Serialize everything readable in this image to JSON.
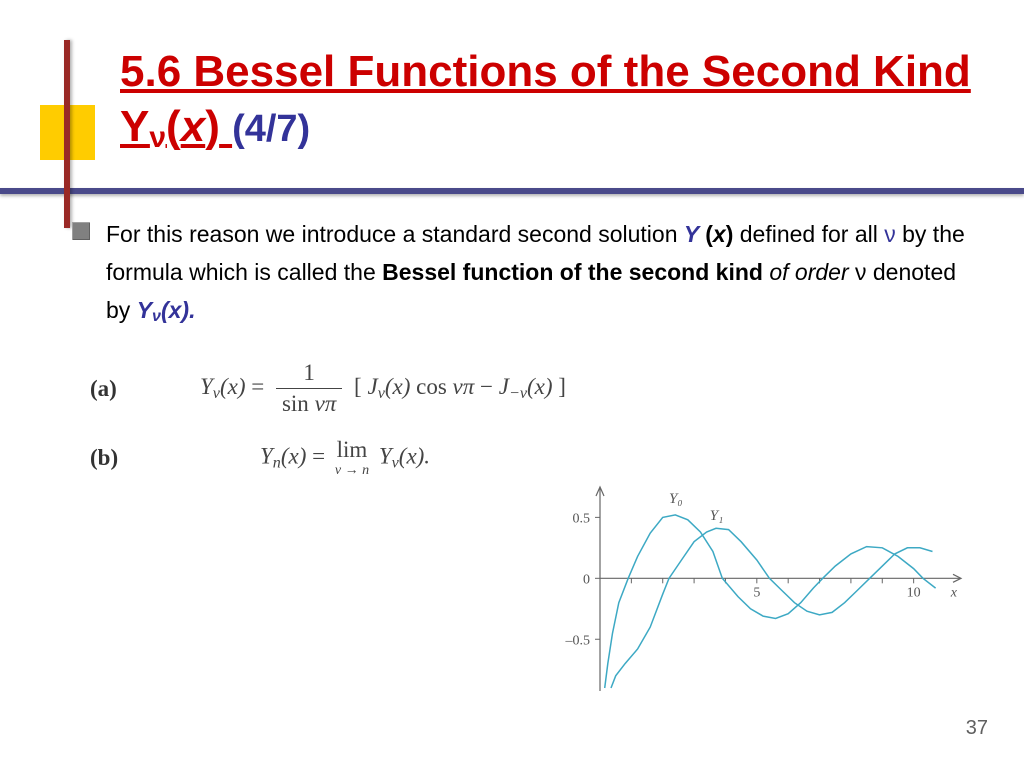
{
  "title": {
    "main_pre": "5.6  Bessel Functions of the Second Kind Y",
    "main_sub": "ν",
    "main_post_open": "(",
    "main_var": "x",
    "main_post_close": ")",
    "pager": "(4/7)"
  },
  "bullet": {
    "t1": "For this reason we introduce a standard second solution  ",
    "yx_y": "Y ",
    "yx_open": "(",
    "yx_x": "x",
    "yx_close": ")",
    "t2": "defined for all ",
    "nu": "ν",
    "t3": " by the formula which is called the ",
    "bessel": "Bessel function of the second kind",
    "t4": " of order ",
    "t5": "ν denoted by  ",
    "ynx_y": "Y",
    "ynx_sub": "ν",
    "ynx_rest": "(x)."
  },
  "formula": {
    "a_label": "(a)",
    "a_lhs_y": "Y",
    "a_lhs_sub": "ν",
    "a_lhs_arg": "(x)",
    "a_eq": "  =  ",
    "frac_num": "1",
    "frac_den_sin": "sin ",
    "frac_den_arg": "νπ",
    "a_rhs_open": "  [",
    "a_rhs_j1_j": "J",
    "a_rhs_j1_sub": "ν",
    "a_rhs_j1_arg": "(x)",
    "a_rhs_cos": " cos ",
    "a_rhs_cos_arg": "νπ",
    "a_rhs_minus": "  −  ",
    "a_rhs_j2_j": "J",
    "a_rhs_j2_sub": "−ν",
    "a_rhs_j2_arg": "(x)",
    "a_rhs_close": "]",
    "b_label": "(b)",
    "b_lhs_y": "Y",
    "b_lhs_sub": "n",
    "b_lhs_arg": "(x)",
    "b_eq": "  =  ",
    "b_lim_top": "lim",
    "b_lim_bot": "ν → n",
    "b_rhs_y": "Y",
    "b_rhs_sub": "ν",
    "b_rhs_arg": "(x)."
  },
  "chart": {
    "type": "line",
    "x_range": [
      0,
      11
    ],
    "y_range": [
      -0.9,
      0.7
    ],
    "x_ticks": [
      1,
      2,
      3,
      4,
      5,
      6,
      7,
      8,
      9,
      10
    ],
    "x_tick_labels": {
      "5": "5",
      "10": "10"
    },
    "y_ticks": [
      -0.5,
      0,
      0.5
    ],
    "y_tick_labels": {
      "-0.5": "–0.5",
      "0": "0",
      "0.5": "0.5"
    },
    "x_axis_label": "x",
    "axis_color": "#666666",
    "tick_fontsize": 14,
    "series": [
      {
        "name": "Y0",
        "label": "Y₀",
        "label_pos": [
          2.2,
          0.62
        ],
        "color": "#3da9c4",
        "width": 1.5,
        "points": [
          [
            0.15,
            -0.9
          ],
          [
            0.25,
            -0.7
          ],
          [
            0.4,
            -0.45
          ],
          [
            0.6,
            -0.2
          ],
          [
            0.9,
            0.0
          ],
          [
            1.2,
            0.18
          ],
          [
            1.6,
            0.37
          ],
          [
            2.0,
            0.5
          ],
          [
            2.4,
            0.52
          ],
          [
            2.8,
            0.48
          ],
          [
            3.2,
            0.38
          ],
          [
            3.6,
            0.22
          ],
          [
            3.9,
            0.0
          ],
          [
            4.4,
            -0.15
          ],
          [
            4.8,
            -0.25
          ],
          [
            5.2,
            -0.31
          ],
          [
            5.6,
            -0.33
          ],
          [
            6.0,
            -0.29
          ],
          [
            6.4,
            -0.2
          ],
          [
            6.8,
            -0.08
          ],
          [
            7.1,
            0.0
          ],
          [
            7.5,
            0.1
          ],
          [
            8.0,
            0.2
          ],
          [
            8.5,
            0.26
          ],
          [
            9.0,
            0.25
          ],
          [
            9.5,
            0.18
          ],
          [
            10.0,
            0.08
          ],
          [
            10.3,
            0.0
          ],
          [
            10.7,
            -0.08
          ]
        ]
      },
      {
        "name": "Y1",
        "label": "Y₁",
        "label_pos": [
          3.5,
          0.48
        ],
        "color": "#3da9c4",
        "width": 1.5,
        "points": [
          [
            0.35,
            -0.9
          ],
          [
            0.5,
            -0.8
          ],
          [
            0.8,
            -0.7
          ],
          [
            1.2,
            -0.58
          ],
          [
            1.6,
            -0.4
          ],
          [
            2.0,
            -0.13
          ],
          [
            2.2,
            0.0
          ],
          [
            2.6,
            0.15
          ],
          [
            3.0,
            0.3
          ],
          [
            3.4,
            0.38
          ],
          [
            3.7,
            0.41
          ],
          [
            4.1,
            0.4
          ],
          [
            4.5,
            0.3
          ],
          [
            5.0,
            0.15
          ],
          [
            5.4,
            0.0
          ],
          [
            5.8,
            -0.1
          ],
          [
            6.2,
            -0.2
          ],
          [
            6.6,
            -0.27
          ],
          [
            7.0,
            -0.3
          ],
          [
            7.4,
            -0.28
          ],
          [
            7.8,
            -0.2
          ],
          [
            8.2,
            -0.1
          ],
          [
            8.6,
            0.0
          ],
          [
            9.0,
            0.1
          ],
          [
            9.4,
            0.2
          ],
          [
            9.8,
            0.25
          ],
          [
            10.2,
            0.25
          ],
          [
            10.6,
            0.22
          ]
        ]
      }
    ]
  },
  "page_number": "37"
}
